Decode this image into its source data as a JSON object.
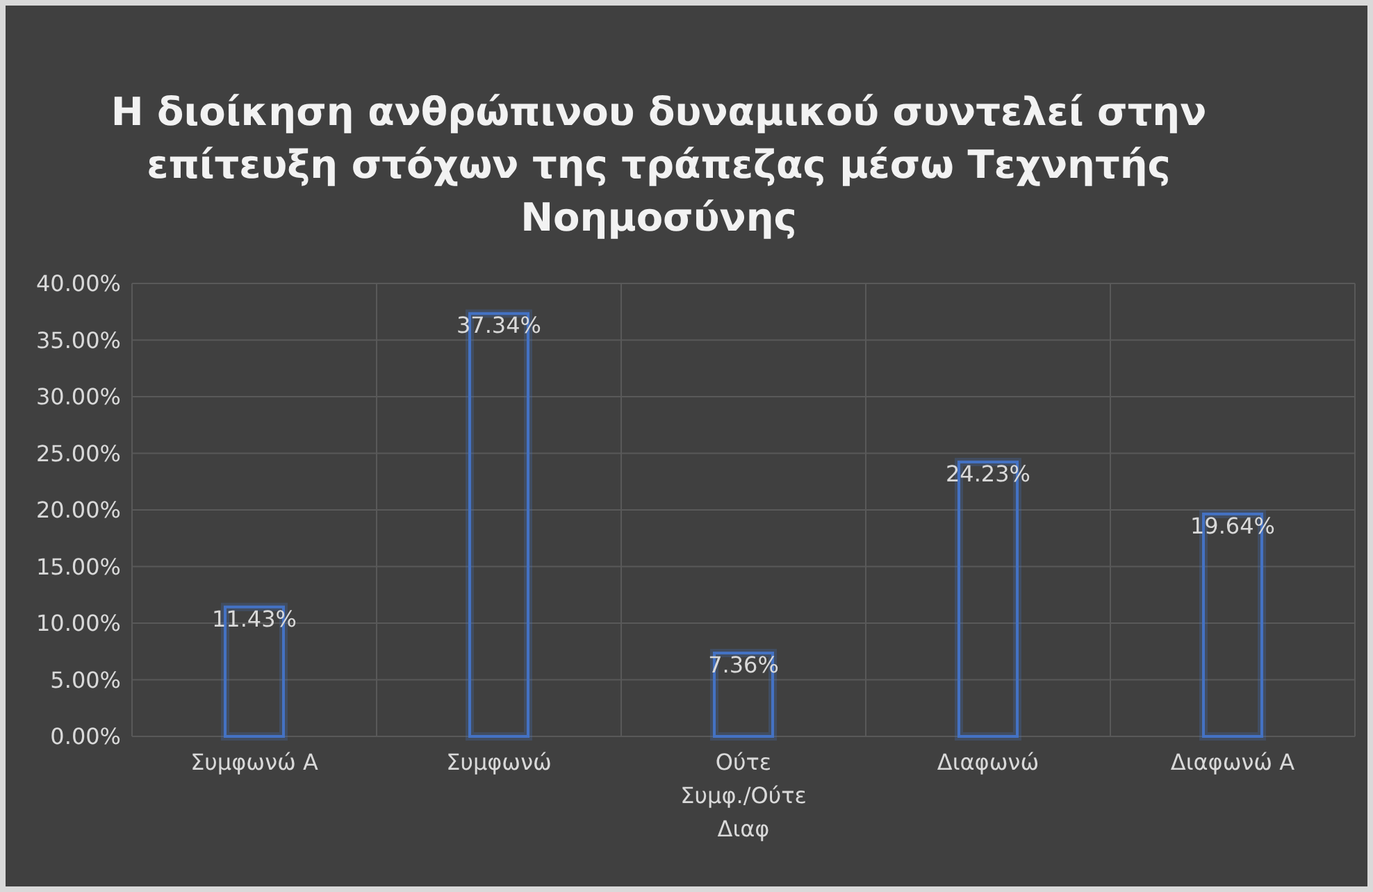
{
  "chart_data": {
    "type": "bar",
    "title": "Η διοίκηση ανθρώπινου δυναμικού συντελεί στην επίτευξη στόχων της τράπεζας μέσω Τεχνητής Νοημοσύνης",
    "categories": [
      "Συμφωνώ Α",
      "Συμφωνώ",
      "Ούτε Συμφ./Ούτε Διαφ",
      "Διαφωνώ",
      "Διαφωνώ Α"
    ],
    "values": [
      11.43,
      37.34,
      7.36,
      24.23,
      19.64
    ],
    "value_labels": [
      "11.43%",
      "37.34%",
      "7.36%",
      "24.23%",
      "19.64%"
    ],
    "color": "#4472c4",
    "ylim": [
      0,
      40
    ],
    "yticks": [
      {
        "value": 0,
        "label": "0.00%"
      },
      {
        "value": 5,
        "label": "5.00%"
      },
      {
        "value": 10,
        "label": "10.00%"
      },
      {
        "value": 15,
        "label": "15.00%"
      },
      {
        "value": 20,
        "label": "20.00%"
      },
      {
        "value": 25,
        "label": "25.00%"
      },
      {
        "value": 30,
        "label": "30.00%"
      },
      {
        "value": 35,
        "label": "35.00%"
      },
      {
        "value": 40,
        "label": "40.00%"
      }
    ],
    "grid": true
  }
}
